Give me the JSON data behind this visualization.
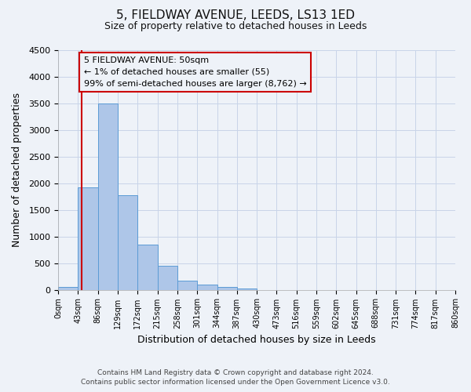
{
  "title": "5, FIELDWAY AVENUE, LEEDS, LS13 1ED",
  "subtitle": "Size of property relative to detached houses in Leeds",
  "xlabel": "Distribution of detached houses by size in Leeds",
  "ylabel": "Number of detached properties",
  "bar_values": [
    55,
    1930,
    3500,
    1780,
    850,
    450,
    175,
    95,
    55,
    30,
    0,
    0,
    0,
    0,
    0,
    0,
    0,
    0,
    0,
    0
  ],
  "bin_labels": [
    "0sqm",
    "43sqm",
    "86sqm",
    "129sqm",
    "172sqm",
    "215sqm",
    "258sqm",
    "301sqm",
    "344sqm",
    "387sqm",
    "430sqm",
    "473sqm",
    "516sqm",
    "559sqm",
    "602sqm",
    "645sqm",
    "688sqm",
    "731sqm",
    "774sqm",
    "817sqm",
    "860sqm"
  ],
  "bar_color": "#aec6e8",
  "bar_edge_color": "#5b9bd5",
  "bg_color": "#eef2f8",
  "grid_color": "#c8d4e8",
  "property_line_x": 50,
  "property_line_color": "#cc0000",
  "annotation_line1": "5 FIELDWAY AVENUE: 50sqm",
  "annotation_line2": "← 1% of detached houses are smaller (55)",
  "annotation_line3": "99% of semi-detached houses are larger (8,762) →",
  "annotation_box_color": "#cc0000",
  "ylim": [
    0,
    4500
  ],
  "yticks": [
    0,
    500,
    1000,
    1500,
    2000,
    2500,
    3000,
    3500,
    4000,
    4500
  ],
  "footer_line1": "Contains HM Land Registry data © Crown copyright and database right 2024.",
  "footer_line2": "Contains public sector information licensed under the Open Government Licence v3.0."
}
